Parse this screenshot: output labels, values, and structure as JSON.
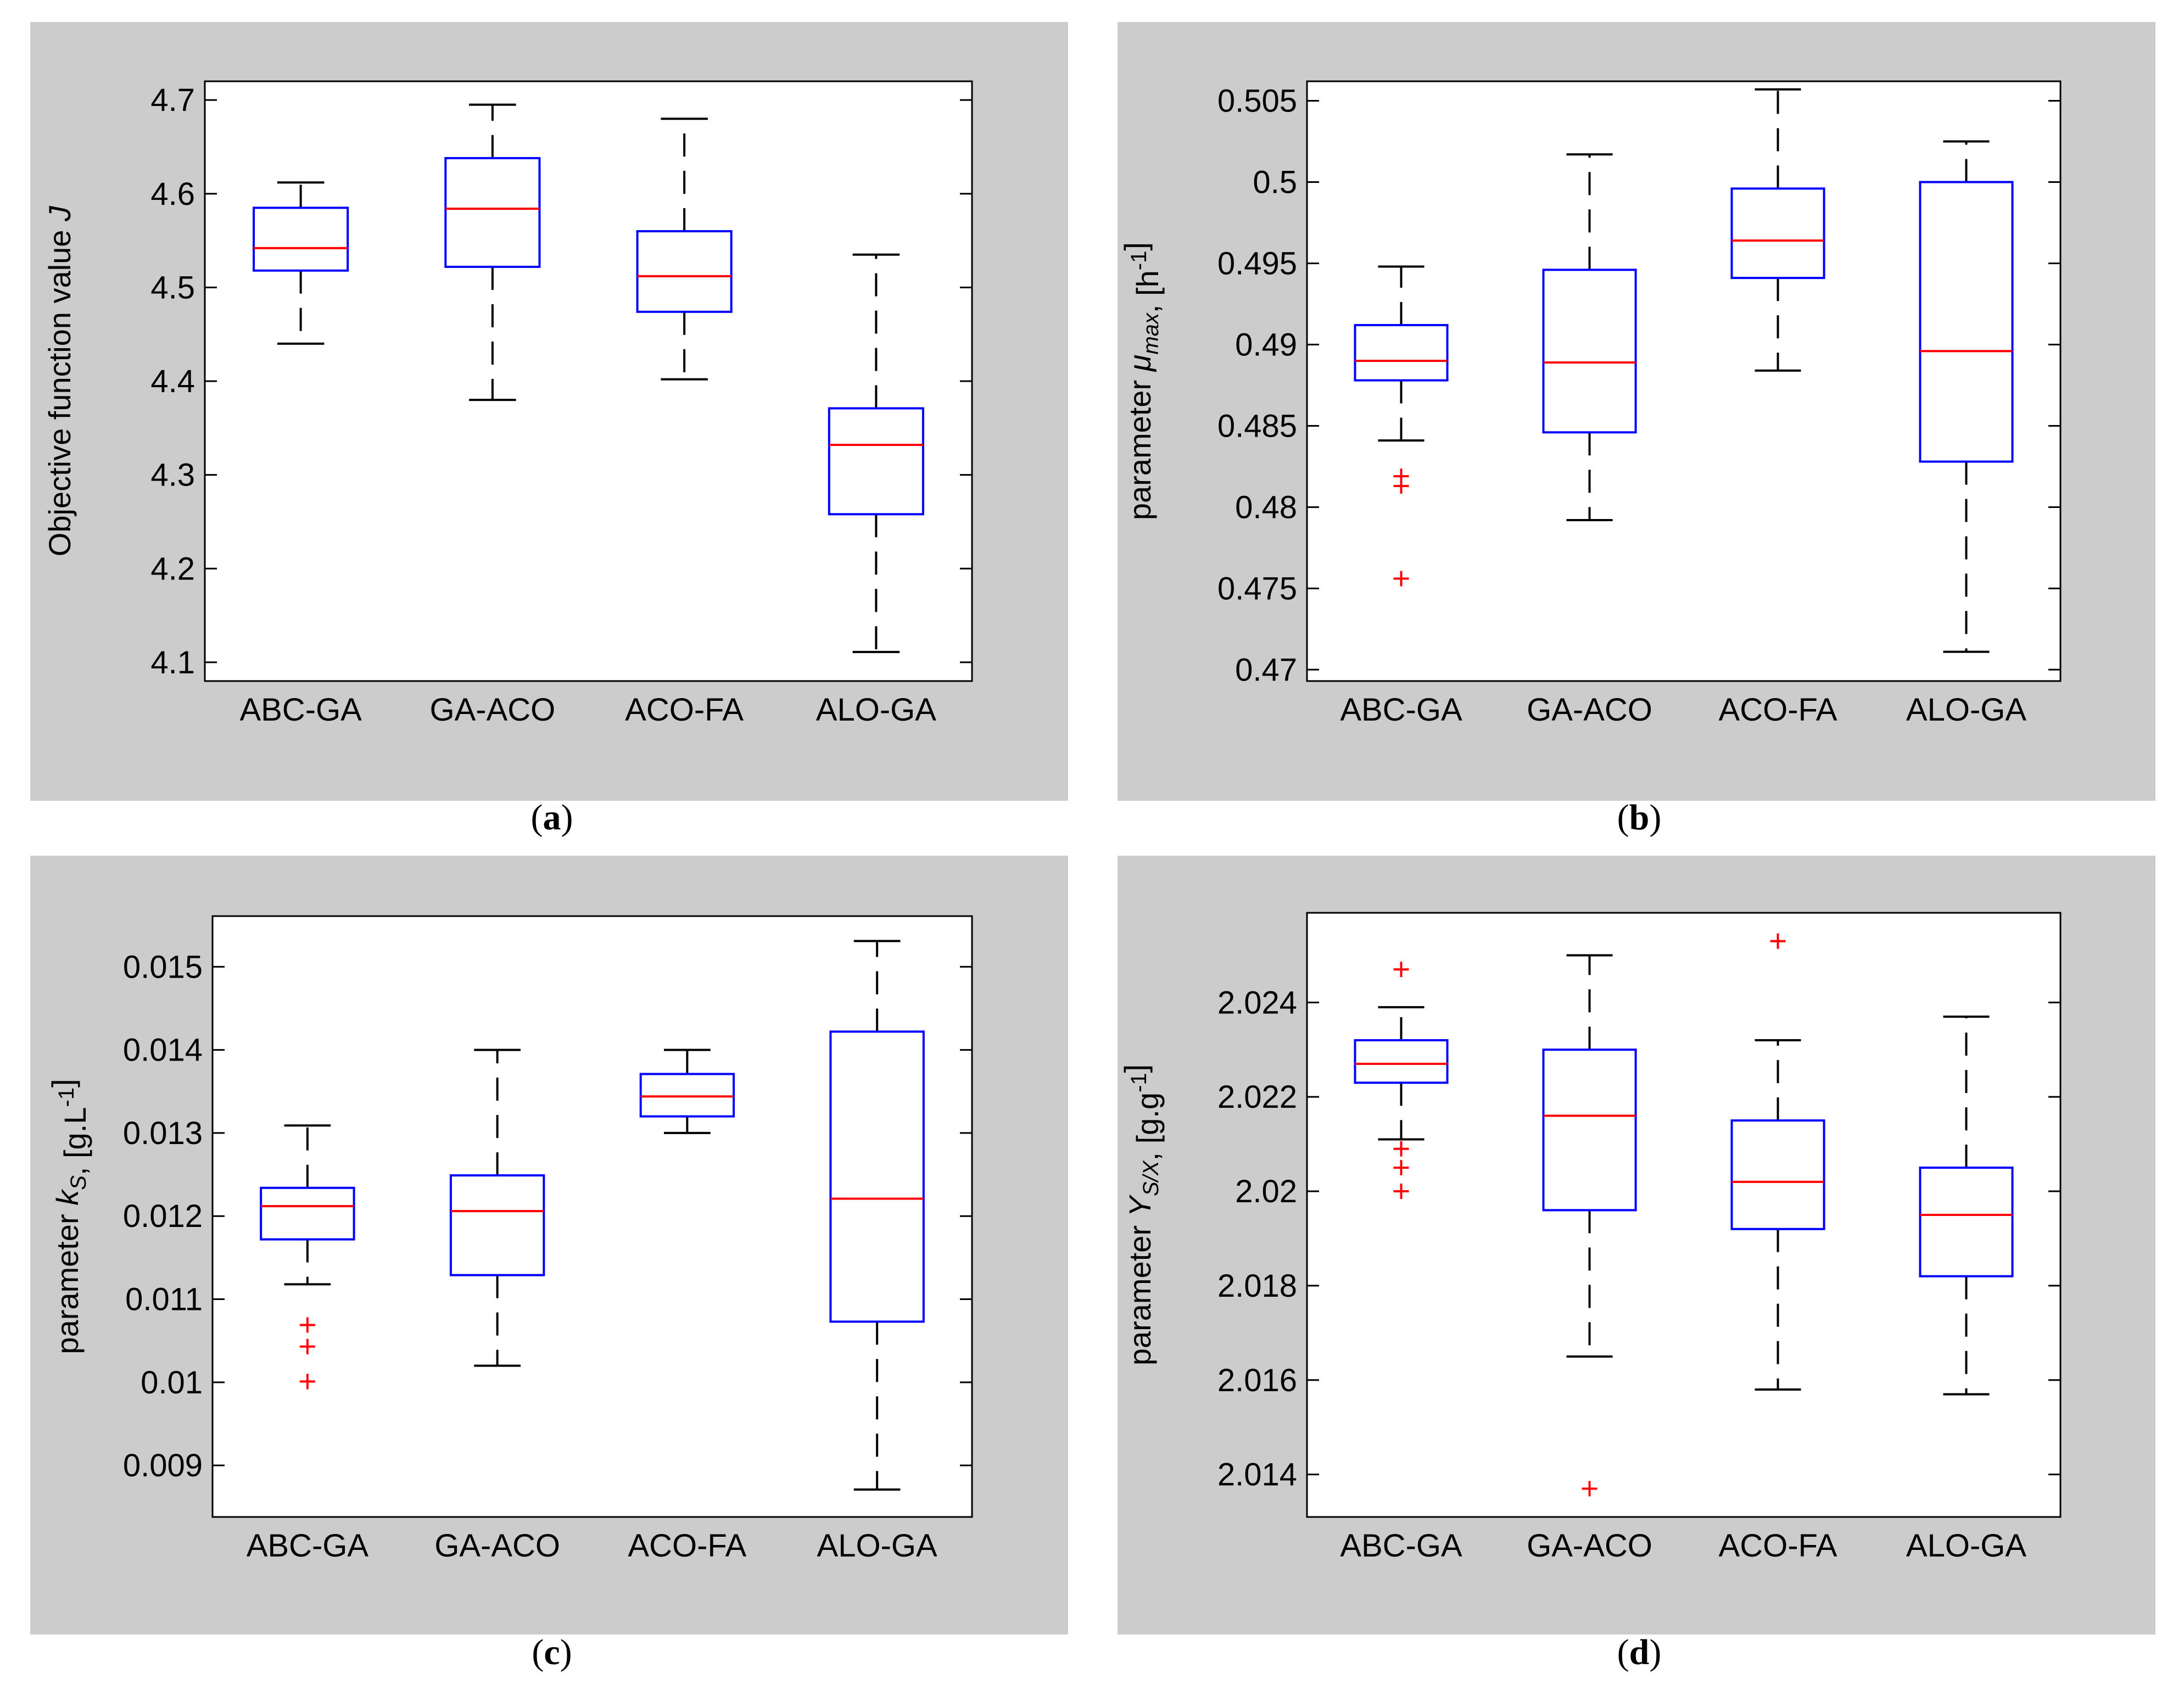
{
  "chart_data": [
    {
      "type": "box",
      "id": "a",
      "caption": "a",
      "ylabel_parts": [
        {
          "t": "Objective function value "
        },
        {
          "t": "J",
          "style": "italic"
        }
      ],
      "ylim": [
        4.08,
        4.72
      ],
      "yticks": [
        4.1,
        4.2,
        4.3,
        4.4,
        4.5,
        4.6,
        4.7
      ],
      "ytick_labels": [
        "4.1",
        "4.2",
        "4.3",
        "4.4",
        "4.5",
        "4.6",
        "4.7"
      ],
      "categories": [
        "ABC-GA",
        "GA-ACO",
        "ACO-FA",
        "ALO-GA"
      ],
      "boxes": [
        {
          "lower_whisker": 4.44,
          "q1": 4.518,
          "median": 4.542,
          "q3": 4.585,
          "upper_whisker": 4.612,
          "outliers": []
        },
        {
          "lower_whisker": 4.38,
          "q1": 4.522,
          "median": 4.584,
          "q3": 4.638,
          "upper_whisker": 4.695,
          "outliers": []
        },
        {
          "lower_whisker": 4.402,
          "q1": 4.474,
          "median": 4.512,
          "q3": 4.56,
          "upper_whisker": 4.68,
          "outliers": []
        },
        {
          "lower_whisker": 4.111,
          "q1": 4.258,
          "median": 4.332,
          "q3": 4.371,
          "upper_whisker": 4.535,
          "outliers": []
        }
      ]
    },
    {
      "type": "box",
      "id": "b",
      "caption": "b",
      "ylabel_parts": [
        {
          "t": "parameter  "
        },
        {
          "t": "μ",
          "style": "italic"
        },
        {
          "t": "max",
          "style": "italic",
          "sub": true
        },
        {
          "t": ", [h"
        },
        {
          "t": "-1",
          "sup": true
        },
        {
          "t": "]"
        }
      ],
      "ylim": [
        0.4693,
        0.5062
      ],
      "yticks": [
        0.47,
        0.475,
        0.48,
        0.485,
        0.49,
        0.495,
        0.5,
        0.505
      ],
      "ytick_labels": [
        "0.47",
        "0.475",
        "0.48",
        "0.485",
        "0.49",
        "0.495",
        "0.5",
        "0.505"
      ],
      "categories": [
        "ABC-GA",
        "GA-ACO",
        "ACO-FA",
        "ALO-GA"
      ],
      "boxes": [
        {
          "lower_whisker": 0.4841,
          "q1": 0.4878,
          "median": 0.489,
          "q3": 0.4912,
          "upper_whisker": 0.4948,
          "outliers": [
            0.4819,
            0.4813,
            0.4756
          ]
        },
        {
          "lower_whisker": 0.4792,
          "q1": 0.4846,
          "median": 0.4889,
          "q3": 0.4946,
          "upper_whisker": 0.5017,
          "outliers": []
        },
        {
          "lower_whisker": 0.4884,
          "q1": 0.4941,
          "median": 0.4964,
          "q3": 0.4996,
          "upper_whisker": 0.5057,
          "outliers": []
        },
        {
          "lower_whisker": 0.4711,
          "q1": 0.4828,
          "median": 0.4896,
          "q3": 0.5,
          "upper_whisker": 0.5025,
          "outliers": []
        }
      ]
    },
    {
      "type": "box",
      "id": "c",
      "caption": "c",
      "ylabel_parts": [
        {
          "t": "parameter  "
        },
        {
          "t": "k",
          "style": "italic"
        },
        {
          "t": "S",
          "style": "italic",
          "sub": true
        },
        {
          "t": ", [g.L"
        },
        {
          "t": "-1",
          "sup": true
        },
        {
          "t": "]"
        }
      ],
      "ylim": [
        0.00838,
        0.01561
      ],
      "yticks": [
        0.009,
        0.01,
        0.011,
        0.012,
        0.013,
        0.014,
        0.015
      ],
      "ytick_labels": [
        "0.009",
        "0.01",
        "0.011",
        "0.012",
        "0.013",
        "0.014",
        "0.015"
      ],
      "categories": [
        "ABC-GA",
        "GA-ACO",
        "ACO-FA",
        "ALO-GA"
      ],
      "boxes": [
        {
          "lower_whisker": 0.01118,
          "q1": 0.01172,
          "median": 0.01212,
          "q3": 0.01234,
          "upper_whisker": 0.01309,
          "outliers": [
            0.01069,
            0.01043,
            0.01001
          ]
        },
        {
          "lower_whisker": 0.0102,
          "q1": 0.01129,
          "median": 0.01206,
          "q3": 0.01249,
          "upper_whisker": 0.014,
          "outliers": []
        },
        {
          "lower_whisker": 0.013,
          "q1": 0.0132,
          "median": 0.01344,
          "q3": 0.01371,
          "upper_whisker": 0.014,
          "outliers": []
        },
        {
          "lower_whisker": 0.00871,
          "q1": 0.01073,
          "median": 0.01221,
          "q3": 0.01422,
          "upper_whisker": 0.01531,
          "outliers": []
        }
      ]
    },
    {
      "type": "box",
      "id": "d",
      "caption": "d",
      "ylabel_parts": [
        {
          "t": "parameter  "
        },
        {
          "t": "Y",
          "style": "italic"
        },
        {
          "t": "S/X",
          "style": "italic",
          "sub": true
        },
        {
          "t": ", [g.g"
        },
        {
          "t": "-1",
          "sup": true
        },
        {
          "t": "]"
        }
      ],
      "ylim": [
        2.0131,
        2.0259
      ],
      "yticks": [
        2.014,
        2.016,
        2.018,
        2.02,
        2.022,
        2.024
      ],
      "ytick_labels": [
        "2.014",
        "2.016",
        "2.018",
        "2.02",
        "2.022",
        "2.024"
      ],
      "categories": [
        "ABC-GA",
        "GA-ACO",
        "ACO-FA",
        "ALO-GA"
      ],
      "boxes": [
        {
          "lower_whisker": 2.0211,
          "q1": 2.0223,
          "median": 2.0227,
          "q3": 2.0232,
          "upper_whisker": 2.0239,
          "outliers": [
            2.0247,
            2.0209,
            2.0205,
            2.02
          ]
        },
        {
          "lower_whisker": 2.0165,
          "q1": 2.0196,
          "median": 2.0216,
          "q3": 2.023,
          "upper_whisker": 2.025,
          "outliers": [
            2.0137
          ]
        },
        {
          "lower_whisker": 2.0158,
          "q1": 2.0192,
          "median": 2.0202,
          "q3": 2.0215,
          "upper_whisker": 2.0232,
          "outliers": [
            2.0253
          ]
        },
        {
          "lower_whisker": 2.0157,
          "q1": 2.0182,
          "median": 2.0195,
          "q3": 2.0205,
          "upper_whisker": 2.0237,
          "outliers": []
        }
      ]
    }
  ]
}
